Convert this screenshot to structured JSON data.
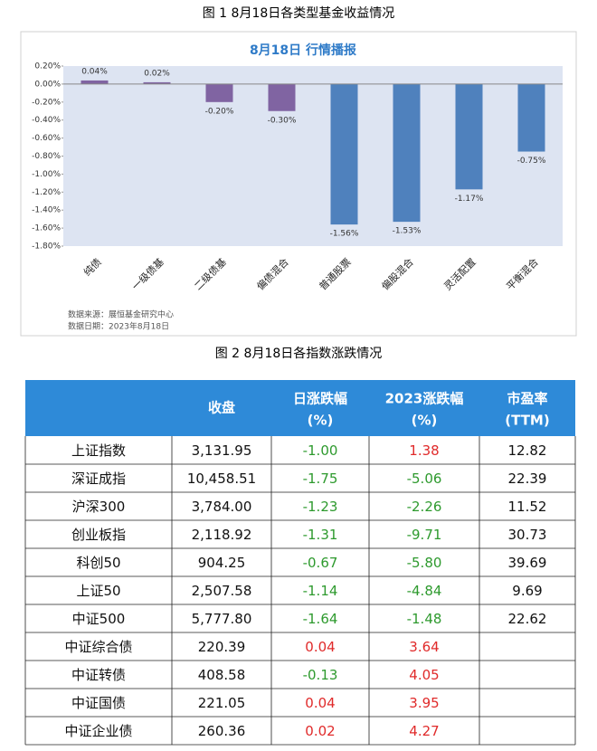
{
  "figure1_caption": "图 1  8月18日各类型基金收益情况",
  "chart_data": {
    "type": "bar",
    "title": "8月18日  行情播报",
    "categories": [
      "纯债",
      "一级债基",
      "二级债基",
      "偏债混合",
      "普通股票",
      "偏股混合",
      "灵活配置",
      "平衡混合"
    ],
    "values": [
      0.04,
      0.02,
      -0.2,
      -0.3,
      -1.56,
      -1.53,
      -1.17,
      -0.75
    ],
    "value_labels": [
      "0.04%",
      "0.02%",
      "-0.20%",
      "-0.30%",
      "-1.56%",
      "-1.53%",
      "-1.17%",
      "-0.75%"
    ],
    "colors": [
      "#8064a2",
      "#8064a2",
      "#8064a2",
      "#8064a2",
      "#4f81bd",
      "#4f81bd",
      "#4f81bd",
      "#4f81bd"
    ],
    "ylim": [
      -1.8,
      0.2
    ],
    "yticks": [
      {
        "value": 0.2,
        "label": "0.20%"
      },
      {
        "value": 0,
        "label": "0.00%"
      },
      {
        "value": -0.2,
        "label": "-0.20%"
      },
      {
        "value": -0.4,
        "label": "-0.40%"
      },
      {
        "value": -0.6,
        "label": "-0.60%"
      },
      {
        "value": -0.8,
        "label": "-0.80%"
      },
      {
        "value": -1.0,
        "label": "-1.00%"
      },
      {
        "value": -1.2,
        "label": "-1.20%"
      },
      {
        "value": -1.4,
        "label": "-1.40%"
      },
      {
        "value": -1.6,
        "label": "-1.60%"
      },
      {
        "value": -1.8,
        "label": "-1.80%"
      }
    ],
    "grid": false,
    "source_notes": [
      "数据来源：展恒基金研究中心",
      "数据日期：2023年8月18日"
    ]
  },
  "figure2_caption": "图 2  8月18日各指数涨跌情况",
  "table": {
    "header": [
      [
        "收盘"
      ],
      [
        "日涨跌幅",
        "(%)"
      ],
      [
        "2023涨跌幅",
        "(%)"
      ],
      [
        "市盈率",
        "(TTM)"
      ]
    ],
    "positive_color": "#e02a2a",
    "negative_color": "#2e9a2e",
    "rows": [
      [
        "上证指数",
        "3,131.95",
        "-1.00",
        "1.38",
        "12.82"
      ],
      [
        "深证成指",
        "10,458.51",
        "-1.75",
        "-5.06",
        "22.39"
      ],
      [
        "沪深300",
        "3,784.00",
        "-1.23",
        "-2.26",
        "11.52"
      ],
      [
        "创业板指",
        "2,118.92",
        "-1.31",
        "-9.71",
        "30.73"
      ],
      [
        "科创50",
        "904.25",
        "-0.67",
        "-5.80",
        "39.69"
      ],
      [
        "上证50",
        "2,507.58",
        "-1.14",
        "-4.84",
        "9.69"
      ],
      [
        "中证500",
        "5,777.80",
        "-1.64",
        "-1.48",
        "22.62"
      ],
      [
        "中证综合债",
        "220.39",
        "0.04",
        "3.64"
      ],
      [
        "中证转债",
        "408.58",
        "-0.13",
        "4.05"
      ],
      [
        "中证国债",
        "221.05",
        "0.04",
        "3.95"
      ],
      [
        "中证企业债",
        "260.36",
        "0.02",
        "4.27"
      ]
    ]
  }
}
